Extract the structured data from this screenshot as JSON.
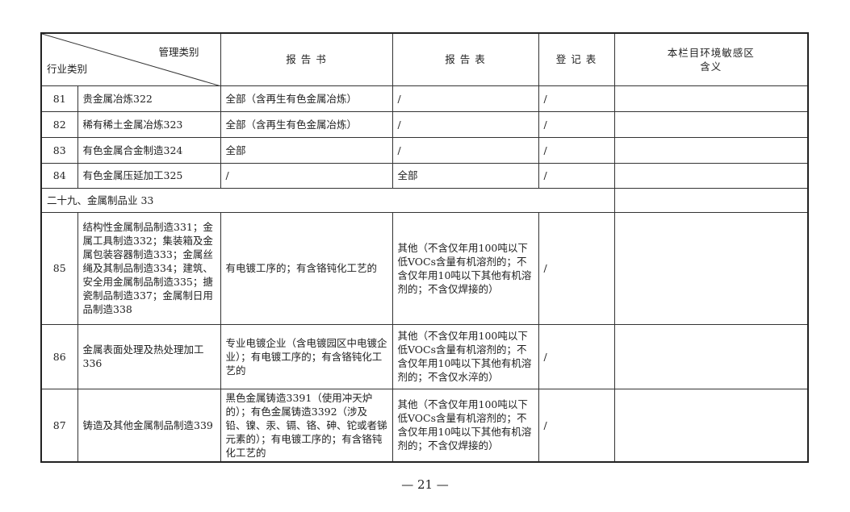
{
  "header": {
    "diag_top": "管理类别",
    "diag_bottom": "行业类别",
    "report_book": "报 告 书",
    "report_form": "报 告 表",
    "register_form": "登 记 表",
    "sensitive_line1": "本栏目环境敏感区",
    "sensitive_line2": "含义"
  },
  "rows": [
    {
      "no": "81",
      "industry": "贵金属冶炼322",
      "book": "全部（含再生有色金属冶炼）",
      "form": "/",
      "register": "/",
      "sensitive": ""
    },
    {
      "no": "82",
      "industry": "稀有稀土金属冶炼323",
      "book": "全部（含再生有色金属冶炼）",
      "form": "/",
      "register": "/",
      "sensitive": ""
    },
    {
      "no": "83",
      "industry": "有色金属合金制造324",
      "book": "全部",
      "form": "/",
      "register": "/",
      "sensitive": ""
    },
    {
      "no": "84",
      "industry": "有色金属压延加工325",
      "book": "/",
      "form": "全部",
      "register": "/",
      "sensitive": ""
    }
  ],
  "section": "二十九、金属制品业 33",
  "rows2": [
    {
      "no": "85",
      "industry": "结构性金属制品制造331；金属工具制造332；集装箱及金属包装容器制造333；金属丝绳及其制品制造334；建筑、安全用金属制品制造335；搪瓷制品制造337；金属制日用品制造338",
      "book": "有电镀工序的；有含铬钝化工艺的",
      "form": "其他（不含仅年用100吨以下低VOCs含量有机溶剂的；不含仅年用10吨以下其他有机溶剂的；不含仅焊接的）",
      "register": "/",
      "sensitive": ""
    },
    {
      "no": "86",
      "industry": "金属表面处理及热处理加工336",
      "book": "专业电镀企业（含电镀园区中电镀企业）；有电镀工序的；有含铬钝化工艺的",
      "form": "其他（不含仅年用100吨以下低VOCs含量有机溶剂的；不含仅年用10吨以下其他有机溶剂的；不含仅水淬的）",
      "register": "/",
      "sensitive": ""
    },
    {
      "no": "87",
      "industry": "铸造及其他金属制品制造339",
      "book": "黑色金属铸造3391（使用冲天炉的）；有色金属铸造3392（涉及铅、镍、汞、镉、铬、砷、铊或者锑元素的）；有电镀工序的；有含铬钝化工艺的",
      "form": "其他（不含仅年用100吨以下低VOCs含量有机溶剂的；不含仅年用10吨以下其他有机溶剂的；不含仅焊接的）",
      "register": "/",
      "sensitive": ""
    }
  ],
  "page_number": "— 21 —"
}
